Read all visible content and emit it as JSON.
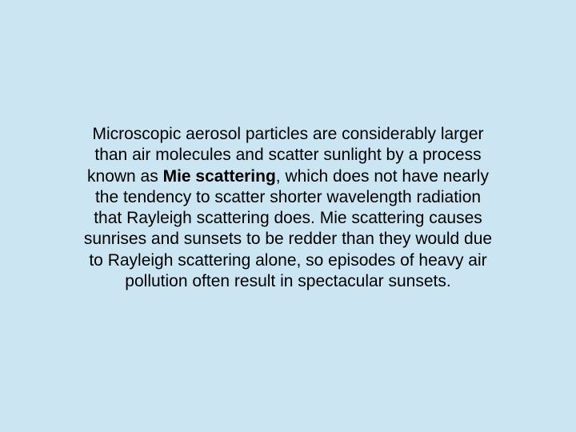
{
  "slide": {
    "background_color": "#cbe5f2",
    "text_color": "#000000",
    "font_family": "Arial",
    "font_size": 21,
    "line_height": 1.25,
    "alignment": "center",
    "paragraph": {
      "part1": "Microscopic aerosol particles are considerably larger than air molecules and scatter sunlight by a process known as ",
      "bold_term": "Mie scattering",
      "part2": ", which does not have nearly the tendency to scatter shorter wavelength radiation that Rayleigh scattering does. Mie scattering causes sunrises and sunsets to be redder than they would due to Rayleigh scattering alone, so episodes of heavy air pollution often result in spectacular sunsets."
    }
  }
}
